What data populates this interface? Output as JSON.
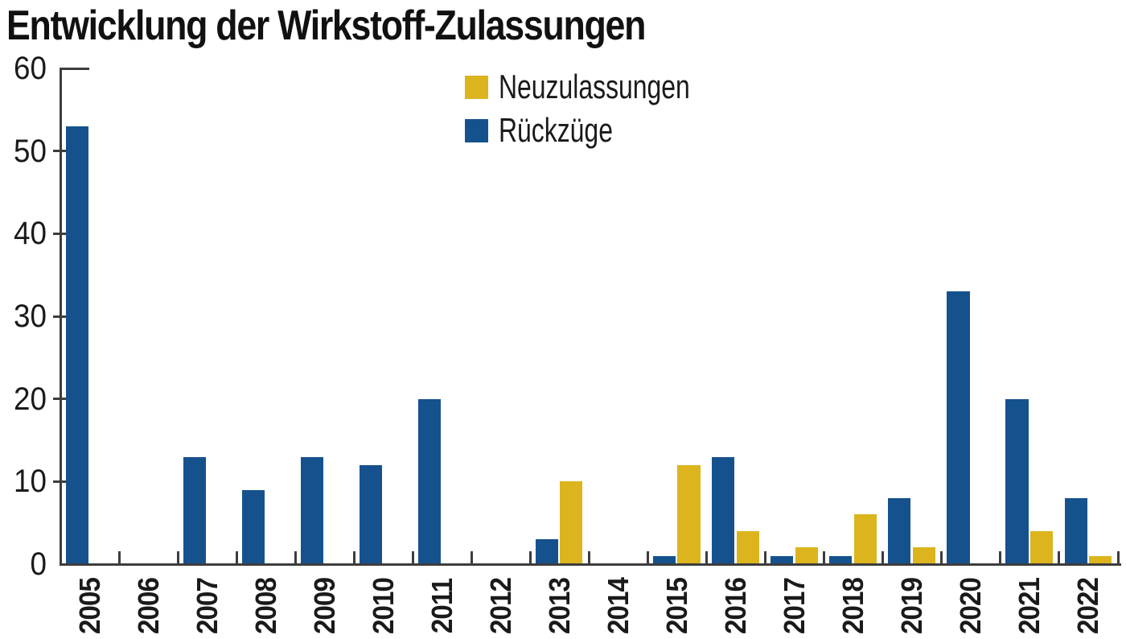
{
  "title": "Entwicklung der Wirkstoff-Zulassungen",
  "colors": {
    "neuzulassungen": "#DCB41E",
    "rueckzuege": "#15528D",
    "axis": "#3d3d3d",
    "text": "#1a1a1a",
    "background": "#ffffff"
  },
  "legend": [
    {
      "label": "Neuzulassungen",
      "color": "#DCB41E"
    },
    {
      "label": "Rückzüge",
      "color": "#15528D"
    }
  ],
  "chart_data": {
    "type": "bar",
    "title": "Entwicklung der Wirkstoff-Zulassungen",
    "categories": [
      "2005",
      "2006",
      "2007",
      "2008",
      "2009",
      "2010",
      "2011",
      "2012",
      "2013",
      "2014",
      "2015",
      "2016",
      "2017",
      "2018",
      "2019",
      "2020",
      "2021",
      "2022"
    ],
    "series": [
      {
        "name": "Neuzulassungen",
        "color": "#DCB41E",
        "values": [
          0,
          0,
          0,
          0,
          0,
          0,
          0,
          0,
          10,
          0,
          12,
          4,
          2,
          6,
          2,
          0,
          4,
          1
        ]
      },
      {
        "name": "Rückzüge",
        "color": "#15528D",
        "values": [
          53,
          0,
          13,
          9,
          13,
          12,
          20,
          0,
          3,
          0,
          1,
          13,
          1,
          1,
          8,
          33,
          20,
          8
        ]
      }
    ],
    "group_order": [
      "Rückzüge",
      "Neuzulassungen"
    ],
    "xlabel": "",
    "ylabel": "",
    "ylim": [
      0,
      60
    ],
    "yticks": [
      0,
      10,
      20,
      30,
      40,
      50,
      60
    ],
    "grid": false,
    "legend_position": "top-center",
    "x_tick_label_rotation": 90
  }
}
